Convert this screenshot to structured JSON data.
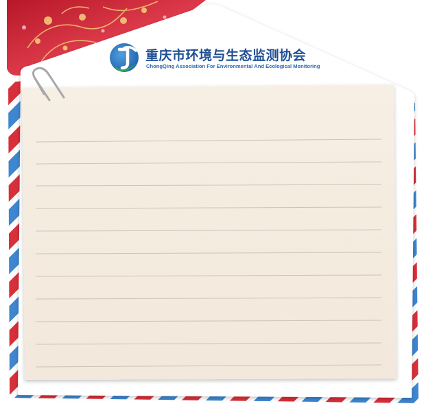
{
  "organization": {
    "name_cn": "重庆市环境与生态监测协会",
    "name_en": "ChongQing Association For Environmental And Ecological Monitoring",
    "logo_icon": "jc-logo-icon"
  },
  "colors": {
    "stripe_red": "#d8303a",
    "stripe_blue": "#3e86cf",
    "flap_red": "#c8202f",
    "paper": "#f6ede1",
    "rule_line": "#cdc2b6",
    "text_primary": "#1f4f94"
  },
  "decorations": {
    "paperclip_icon": "paperclip-icon",
    "floral_icon": "floral-ornament-icon"
  }
}
